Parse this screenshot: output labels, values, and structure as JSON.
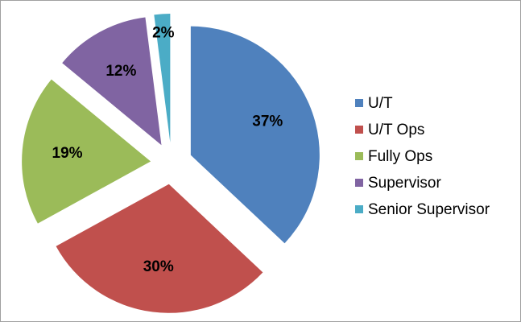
{
  "chart_data": {
    "type": "pie",
    "categories": [
      "U/T",
      "U/T Ops",
      "Fully Ops",
      "Supervisor",
      "Senior Supervisor"
    ],
    "values": [
      37,
      30,
      19,
      12,
      2
    ],
    "value_labels": [
      "37%",
      "30%",
      "19%",
      "12%",
      "2%"
    ],
    "colors": [
      "#4f81bd",
      "#c0504d",
      "#9bbb59",
      "#8064a2",
      "#4bacc6"
    ]
  }
}
